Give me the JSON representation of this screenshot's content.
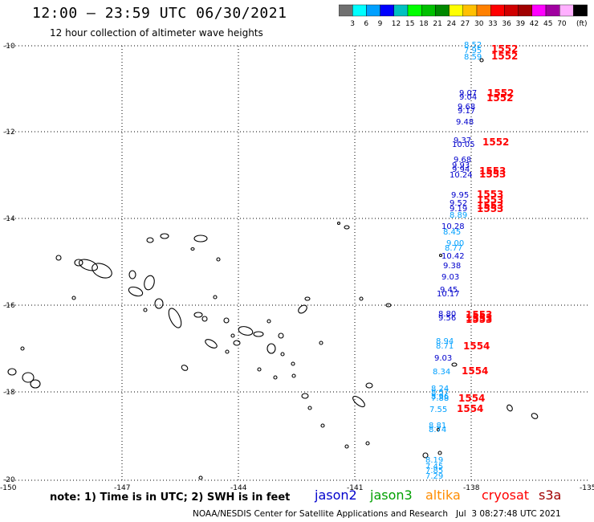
{
  "header": {
    "title": "12:00 – 23:59 UTC 06/30/2021",
    "subtitle": "12 hour collection of altimeter wave heights"
  },
  "colorbar": {
    "colors": [
      "#707070",
      "#00ffff",
      "#00a0ff",
      "#0000ff",
      "#00c0c0",
      "#00ff00",
      "#00c000",
      "#008800",
      "#ffff00",
      "#ffc000",
      "#ff8000",
      "#ff0000",
      "#d00000",
      "#a00000",
      "#ff00ff",
      "#a000a0",
      "#ffb0ff",
      "#000000"
    ],
    "labels": [
      "3",
      "6",
      "9",
      "12",
      "15",
      "18",
      "21",
      "24",
      "27",
      "30",
      "33",
      "36",
      "39",
      "42",
      "45",
      "70"
    ],
    "unit": "(ft)"
  },
  "axes": {
    "lat_labels": [
      "-10",
      "-12",
      "-14",
      "-16",
      "-18",
      "-20"
    ],
    "lon_labels": [
      "-150",
      "-147",
      "-144",
      "-141",
      "-138",
      "-135"
    ]
  },
  "observations": [
    {
      "text": "8.52",
      "color": "#00a0ff"
    },
    {
      "text": "7.95",
      "color": "#00a0ff"
    },
    {
      "text": "8.59",
      "color": "#00a0ff"
    },
    {
      "text": "9.07",
      "color": "#0000cc"
    },
    {
      "text": "9.04",
      "color": "#0000cc"
    },
    {
      "text": "9.68",
      "color": "#0000cc"
    },
    {
      "text": "9.17",
      "color": "#0000cc"
    },
    {
      "text": "9.48",
      "color": "#0000cc"
    },
    {
      "text": "9.37",
      "color": "#0000cc"
    },
    {
      "text": "10.05",
      "color": "#0000cc"
    },
    {
      "text": "9.68",
      "color": "#0000cc"
    },
    {
      "text": "9.93",
      "color": "#0000cc"
    },
    {
      "text": "9.94",
      "color": "#0000cc"
    },
    {
      "text": "10.24",
      "color": "#0000cc"
    },
    {
      "text": "9.95",
      "color": "#0000cc"
    },
    {
      "text": "9.52",
      "color": "#0000cc"
    },
    {
      "text": "9.19",
      "color": "#0000cc"
    },
    {
      "text": "8.89",
      "color": "#00a0ff"
    },
    {
      "text": "10.28",
      "color": "#0000cc"
    },
    {
      "text": "8.45",
      "color": "#00a0ff"
    },
    {
      "text": "9.00",
      "color": "#00a0ff"
    },
    {
      "text": "8.77",
      "color": "#00a0ff"
    },
    {
      "text": "10.42",
      "color": "#0000cc"
    },
    {
      "text": "9.38",
      "color": "#0000cc"
    },
    {
      "text": "9.03",
      "color": "#0000cc"
    },
    {
      "text": "9.45",
      "color": "#0000cc"
    },
    {
      "text": "10.17",
      "color": "#0000cc"
    },
    {
      "text": "8.80",
      "color": "#0000cc"
    },
    {
      "text": "9.56",
      "color": "#0000cc"
    },
    {
      "text": "8.94",
      "color": "#00a0ff"
    },
    {
      "text": "8.71",
      "color": "#00a0ff"
    },
    {
      "text": "9.03",
      "color": "#0000cc"
    },
    {
      "text": "8.34",
      "color": "#00a0ff"
    },
    {
      "text": "8.24",
      "color": "#00a0ff"
    },
    {
      "text": "8.57",
      "color": "#00a0ff"
    },
    {
      "text": "8.96",
      "color": "#00a0ff"
    },
    {
      "text": "7.88",
      "color": "#00a0ff"
    },
    {
      "text": "7.55",
      "color": "#00a0ff"
    },
    {
      "text": "8.81",
      "color": "#00a0ff"
    },
    {
      "text": "8.74",
      "color": "#00a0ff"
    },
    {
      "text": "8.19",
      "color": "#00a0ff"
    },
    {
      "text": "7.45",
      "color": "#00a0ff"
    },
    {
      "text": "7.85",
      "color": "#00a0ff"
    },
    {
      "text": "7.29",
      "color": "#00a0ff"
    }
  ],
  "times": [
    {
      "text": "1552"
    },
    {
      "text": "1552"
    },
    {
      "text": "1552"
    },
    {
      "text": "1552"
    },
    {
      "text": "1552"
    },
    {
      "text": "1553"
    },
    {
      "text": "1553"
    },
    {
      "text": "1553"
    },
    {
      "text": "1553"
    },
    {
      "text": "1553"
    },
    {
      "text": "1553"
    },
    {
      "text": "1553"
    },
    {
      "text": "1553"
    },
    {
      "text": "1553"
    },
    {
      "text": "1554"
    },
    {
      "text": "1554"
    },
    {
      "text": "1554"
    },
    {
      "text": "1554"
    }
  ],
  "footer": {
    "note": "note: 1) Time is in UTC; 2) SWH is in feet",
    "satellites": [
      {
        "name": "jason2",
        "color": "#0000cc"
      },
      {
        "name": "jason3",
        "color": "#00a000"
      },
      {
        "name": "altika",
        "color": "#ff8c00"
      },
      {
        "name": "cryosat",
        "color": "#ff0000"
      },
      {
        "name": "s3a",
        "color": "#a00000"
      }
    ],
    "credit": "NOAA/NESDIS Center for Satellite Applications and Research   Jul  3 08:27:48 UTC 2021"
  }
}
